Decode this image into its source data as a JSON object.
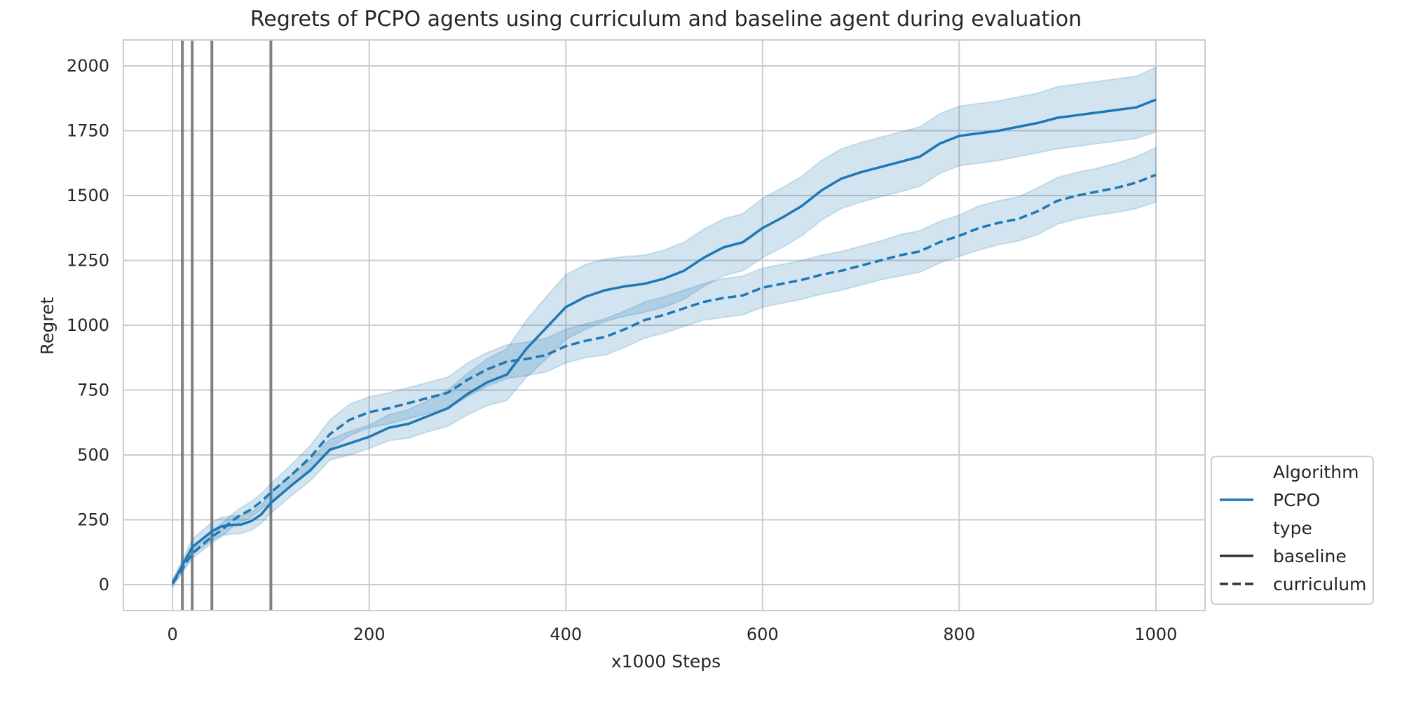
{
  "chart_data": {
    "type": "line",
    "title": "Regrets of PCPO agents using curriculum and baseline agent during evaluation",
    "xlabel": "x1000 Steps",
    "ylabel": "Regret",
    "xlim": [
      -50,
      1050
    ],
    "ylim": [
      -100,
      2100
    ],
    "xticks": [
      0,
      200,
      400,
      600,
      800,
      1000
    ],
    "yticks": [
      0,
      250,
      500,
      750,
      1000,
      1250,
      1500,
      1750,
      2000
    ],
    "grid": true,
    "vertical_lines": [
      10,
      20,
      40,
      100
    ],
    "legend": {
      "placement": "outside-right-bottom",
      "entries": [
        {
          "label": "Algorithm",
          "kind": "header"
        },
        {
          "label": "PCPO",
          "kind": "solid",
          "color": "#1f77b4"
        },
        {
          "label": "type",
          "kind": "header"
        },
        {
          "label": "baseline",
          "kind": "solid",
          "color": "#333333"
        },
        {
          "label": "curriculum",
          "kind": "dashed",
          "color": "#333333"
        }
      ]
    },
    "series": [
      {
        "name": "PCPO baseline",
        "style": "solid",
        "color": "#1f77b4",
        "x": [
          0,
          10,
          20,
          40,
          50,
          60,
          70,
          80,
          90,
          100,
          120,
          140,
          160,
          180,
          200,
          220,
          240,
          260,
          280,
          300,
          320,
          340,
          360,
          380,
          400,
          420,
          440,
          460,
          480,
          500,
          520,
          540,
          560,
          580,
          600,
          620,
          640,
          660,
          680,
          700,
          720,
          740,
          760,
          780,
          800,
          820,
          840,
          860,
          880,
          900,
          920,
          940,
          960,
          980,
          1000
        ],
        "y": [
          5,
          75,
          145,
          205,
          225,
          230,
          232,
          245,
          270,
          315,
          380,
          440,
          520,
          545,
          570,
          605,
          620,
          650,
          680,
          735,
          780,
          810,
          910,
          990,
          1070,
          1110,
          1135,
          1150,
          1160,
          1180,
          1210,
          1260,
          1300,
          1320,
          1375,
          1415,
          1460,
          1520,
          1565,
          1590,
          1610,
          1630,
          1650,
          1700,
          1730,
          1740,
          1750,
          1765,
          1780,
          1800,
          1810,
          1820,
          1830,
          1840,
          1870
        ],
        "ci_half_width": [
          15,
          20,
          30,
          35,
          35,
          35,
          35,
          35,
          35,
          40,
          40,
          40,
          40,
          45,
          45,
          50,
          55,
          60,
          70,
          80,
          90,
          100,
          110,
          120,
          125,
          125,
          120,
          115,
          110,
          110,
          110,
          110,
          110,
          110,
          115,
          115,
          115,
          115,
          115,
          115,
          115,
          115,
          115,
          115,
          115,
          115,
          115,
          115,
          115,
          120,
          120,
          120,
          120,
          120,
          125
        ]
      },
      {
        "name": "PCPO curriculum",
        "style": "dashed",
        "color": "#1f77b4",
        "x": [
          0,
          10,
          20,
          40,
          50,
          60,
          70,
          80,
          90,
          100,
          120,
          140,
          160,
          180,
          200,
          220,
          240,
          260,
          280,
          300,
          320,
          340,
          360,
          380,
          400,
          420,
          440,
          460,
          480,
          500,
          520,
          540,
          560,
          580,
          600,
          620,
          640,
          660,
          680,
          700,
          720,
          740,
          760,
          780,
          800,
          820,
          840,
          860,
          880,
          900,
          920,
          940,
          960,
          980,
          1000
        ],
        "y": [
          5,
          60,
          120,
          185,
          210,
          245,
          270,
          290,
          320,
          355,
          420,
          490,
          580,
          635,
          665,
          680,
          700,
          720,
          740,
          790,
          830,
          860,
          870,
          885,
          920,
          940,
          955,
          985,
          1020,
          1040,
          1065,
          1090,
          1105,
          1115,
          1145,
          1160,
          1175,
          1195,
          1210,
          1230,
          1250,
          1270,
          1285,
          1320,
          1345,
          1375,
          1395,
          1410,
          1440,
          1480,
          1500,
          1515,
          1530,
          1550,
          1580
        ],
        "ci_half_width": [
          10,
          15,
          20,
          25,
          25,
          25,
          28,
          30,
          30,
          35,
          40,
          45,
          55,
          60,
          60,
          60,
          60,
          60,
          60,
          65,
          65,
          65,
          65,
          65,
          65,
          65,
          70,
          70,
          70,
          70,
          70,
          70,
          75,
          75,
          75,
          75,
          75,
          75,
          75,
          75,
          75,
          80,
          80,
          80,
          80,
          85,
          85,
          85,
          90,
          90,
          90,
          90,
          95,
          100,
          105
        ]
      }
    ]
  }
}
